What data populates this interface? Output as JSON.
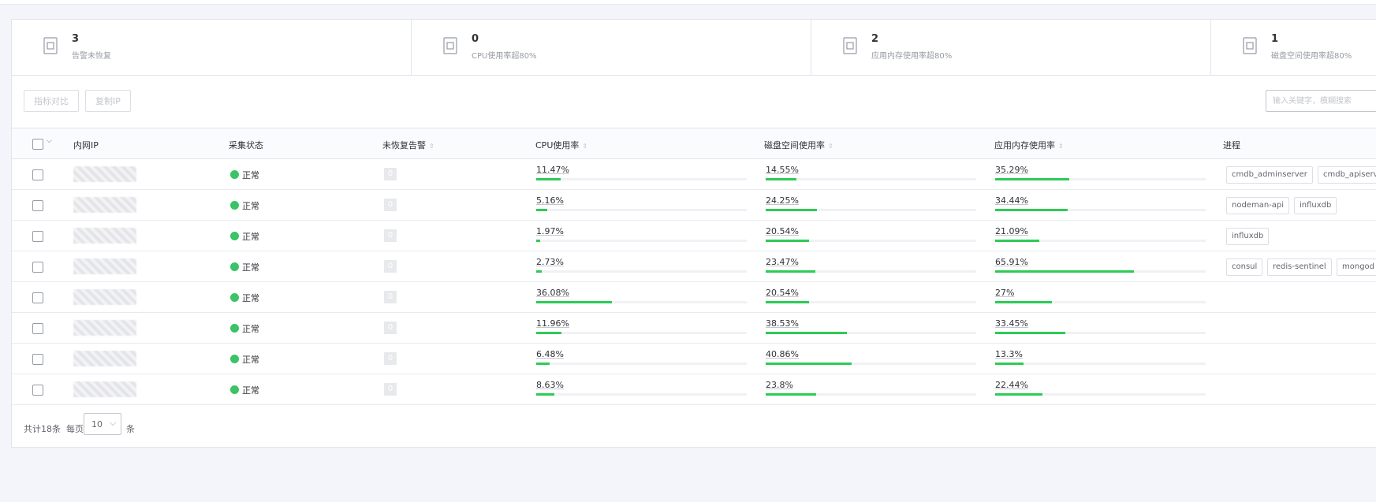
{
  "cards": [
    {
      "count": 3,
      "label": "告警未恢复"
    },
    {
      "count": 0,
      "label": "CPU使用率超80%"
    },
    {
      "count": 2,
      "label": "应用内存使用率超80%"
    },
    {
      "count": 1,
      "label": "磁盘空间使用率超80%"
    }
  ],
  "toolbar": {
    "buttons": [
      "指标对比",
      "复制IP"
    ],
    "search_placeholder": "输入关键字，模糊搜索"
  },
  "table": {
    "headers": [
      "内网IP",
      "采集状态",
      "未恢复告警",
      "CPU使用率",
      "磁盘空间使用率",
      "应用内存使用率",
      "进程"
    ],
    "rows": [
      {
        "status": "正常",
        "alarms": 0,
        "cpu": {
          "value": 11.47,
          "label": "11.47%"
        },
        "disk": {
          "value": 14.55,
          "label": "14.55%"
        },
        "memory": {
          "value": 35.29,
          "label": "35.29%"
        },
        "processes": [
          "cmdb_adminserver",
          "cmdb_apiserver"
        ]
      },
      {
        "status": "正常",
        "alarms": 0,
        "cpu": {
          "value": 5.16,
          "label": "5.16%"
        },
        "disk": {
          "value": 24.25,
          "label": "24.25%"
        },
        "memory": {
          "value": 34.44,
          "label": "34.44%"
        },
        "processes": [
          "nodeman-api",
          "influxdb"
        ]
      },
      {
        "status": "正常",
        "alarms": 0,
        "cpu": {
          "value": 1.97,
          "label": "1.97%"
        },
        "disk": {
          "value": 20.54,
          "label": "20.54%"
        },
        "memory": {
          "value": 21.09,
          "label": "21.09%"
        },
        "processes": [
          "influxdb"
        ]
      },
      {
        "status": "正常",
        "alarms": 0,
        "cpu": {
          "value": 2.73,
          "label": "2.73%"
        },
        "disk": {
          "value": 23.47,
          "label": "23.47%"
        },
        "memory": {
          "value": 65.91,
          "label": "65.91%"
        },
        "processes": [
          "consul",
          "redis-sentinel",
          "mongod"
        ]
      },
      {
        "status": "正常",
        "alarms": 0,
        "cpu": {
          "value": 36.08,
          "label": "36.08%"
        },
        "disk": {
          "value": 20.54,
          "label": "20.54%"
        },
        "memory": {
          "value": 27,
          "label": "27%"
        },
        "processes": []
      },
      {
        "status": "正常",
        "alarms": 0,
        "cpu": {
          "value": 11.96,
          "label": "11.96%"
        },
        "disk": {
          "value": 38.53,
          "label": "38.53%"
        },
        "memory": {
          "value": 33.45,
          "label": "33.45%"
        },
        "processes": []
      },
      {
        "status": "正常",
        "alarms": 0,
        "cpu": {
          "value": 6.48,
          "label": "6.48%"
        },
        "disk": {
          "value": 40.86,
          "label": "40.86%"
        },
        "memory": {
          "value": 13.3,
          "label": "13.3%"
        },
        "processes": []
      },
      {
        "status": "正常",
        "alarms": 0,
        "cpu": {
          "value": 8.63,
          "label": "8.63%"
        },
        "disk": {
          "value": 23.8,
          "label": "23.8%"
        },
        "memory": {
          "value": 22.44,
          "label": "22.44%"
        },
        "processes": []
      }
    ]
  },
  "pagination": {
    "total": "共计18条",
    "per_page_label": "每页",
    "page_size": 10,
    "unit": "条"
  }
}
